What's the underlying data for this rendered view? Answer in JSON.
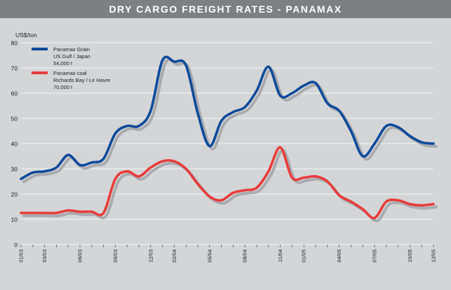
{
  "title": "DRY CARGO FREIGHT RATES - PANAMAX",
  "chart_data": {
    "type": "line",
    "title": "DRY CARGO FREIGHT RATES - PANAMAX",
    "ylabel": "US$/ton",
    "xlabel": "",
    "ylim": [
      0,
      80
    ],
    "yticks": [
      0,
      10,
      20,
      30,
      40,
      50,
      60,
      70,
      80
    ],
    "grid": true,
    "legend_position": "top-left",
    "x": [
      "01/03",
      "02/03",
      "03/03",
      "04/03",
      "05/03",
      "06/03",
      "07/03",
      "08/03",
      "09/03",
      "10/03",
      "11/03",
      "12/03",
      "01/04",
      "02/04",
      "03/04",
      "04/04",
      "05/04",
      "06/04",
      "07/04",
      "08/04",
      "09/04",
      "10/04",
      "11/04",
      "12/04",
      "01/05",
      "02/05",
      "03/05",
      "04/05",
      "05/05",
      "06/05",
      "07/05",
      "08/05",
      "09/05",
      "10/05",
      "11/05",
      "12/05"
    ],
    "xtick_labels": [
      "01/03",
      "03/03",
      "06/03",
      "09/03",
      "12/03",
      "02/04",
      "05/04",
      "08/04",
      "11/04",
      "01/05",
      "04/05",
      "07/05",
      "10/05",
      "12/05"
    ],
    "series": [
      {
        "name": "Panamax Grain",
        "legend_lines": [
          "Panamax Grain",
          "US Gulf / Japan",
          "54,000 t"
        ],
        "color": "#0d4a9a",
        "values": [
          26,
          28.5,
          29,
          30.5,
          35.5,
          31.5,
          32.5,
          34,
          44,
          47,
          47,
          53,
          73,
          72.5,
          71,
          52,
          39,
          49,
          52.5,
          54.5,
          61,
          70.5,
          59,
          60,
          63,
          64,
          56,
          53,
          45,
          35,
          40,
          47,
          46.5,
          43,
          40.5,
          40
        ]
      },
      {
        "name": "Panamax coal",
        "legend_lines": [
          "Panamax coal",
          "Richards Bay / Le Havre",
          "70,000 t"
        ],
        "color": "#e83c3c",
        "values": [
          12.5,
          12.5,
          12.5,
          12.5,
          13.5,
          13,
          13,
          12.5,
          26,
          29,
          27,
          30.5,
          33,
          33,
          30,
          24,
          19,
          17.5,
          20.5,
          21.5,
          22.5,
          29,
          38.5,
          26.5,
          26.5,
          27,
          25,
          19.5,
          17,
          14,
          10.5,
          17,
          17.5,
          16,
          15.5,
          16
        ]
      }
    ]
  }
}
